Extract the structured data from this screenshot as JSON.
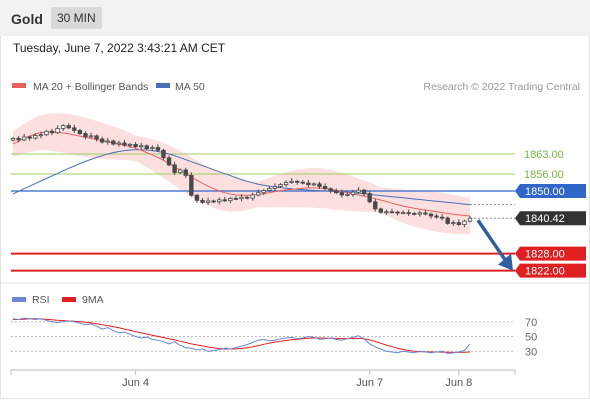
{
  "header": {
    "symbol": "Gold",
    "interval": "30 MIN",
    "timestamp": "Tuesday, June 7, 2022 3:43:21 AM CET"
  },
  "legend": {
    "ma20_label": "MA 20 + Bollinger Bands",
    "ma50_label": "MA 50",
    "credit": "Research © 2022 Trading Central",
    "rsi_label": "RSI",
    "ma9_label": "9MA"
  },
  "colors": {
    "candle": "#4a4a4a",
    "ma20": "#e8605f",
    "band": "#fbd6d6",
    "ma50": "#4a6fb5",
    "resistance": "#9ccc65",
    "pivot": "#2f66c8",
    "support": "#e02020",
    "arrow": "#2f5fa0",
    "rsi": "#6b86d6",
    "rsi_ma": "#e02020",
    "price_tag": "#333333"
  },
  "chart_data": [
    {
      "type": "candlestick",
      "x_ticks": [
        "Jun 4",
        "Jun 7",
        "Jun 8"
      ],
      "levels": [
        {
          "value": 1863.0,
          "label": "1863.00",
          "kind": "resistance"
        },
        {
          "value": 1856.0,
          "label": "1856.00",
          "kind": "resistance"
        },
        {
          "value": 1850.0,
          "label": "1850.00",
          "kind": "pivot"
        },
        {
          "value": 1828.0,
          "label": "1828.00",
          "kind": "support"
        },
        {
          "value": 1822.0,
          "label": "1822.00",
          "kind": "support"
        }
      ],
      "last_price": 1840.42,
      "last_price_label": "1840.42",
      "ylim": [
        1818,
        1882
      ],
      "close": [
        1868.5,
        1868,
        1869,
        1868.6,
        1869.5,
        1869.8,
        1871,
        1870.5,
        1872,
        1873,
        1872.2,
        1871.3,
        1870.2,
        1869.1,
        1869.4,
        1868.3,
        1867.2,
        1867.6,
        1866.5,
        1866.9,
        1866.1,
        1866.4,
        1865.6,
        1865.9,
        1864.9,
        1865.3,
        1864.3,
        1861.7,
        1859.2,
        1856.5,
        1857.4,
        1855.5,
        1848.5,
        1846.7,
        1846,
        1846.5,
        1846.2,
        1846.9,
        1846.6,
        1847.4,
        1847.3,
        1847.8,
        1847.5,
        1848.6,
        1849.4,
        1850.2,
        1850.9,
        1851.6,
        1852.3,
        1853,
        1853.4,
        1853.1,
        1852.8,
        1852.2,
        1852.5,
        1851.6,
        1850.8,
        1850.1,
        1849.4,
        1848.6,
        1848.8,
        1849.6,
        1850.3,
        1849.1,
        1846.2,
        1843.7,
        1842.5,
        1842.7,
        1842.6,
        1842.3,
        1842.4,
        1842.1,
        1841.9,
        1842.3,
        1841.9,
        1841.2,
        1840.8,
        1840.5,
        1838.6,
        1838.9,
        1838.2,
        1839.4,
        1840.42
      ],
      "ma20": [
        1866.5,
        1867.5,
        1868.5,
        1869.3,
        1870,
        1870.5,
        1870.7,
        1870.7,
        1870.6,
        1870.4,
        1870.1,
        1869.7,
        1869.3,
        1868.9,
        1868.5,
        1868.1,
        1867.7,
        1867.3,
        1866.9,
        1866.5,
        1866.1,
        1865.6,
        1865,
        1864.3,
        1863.5,
        1862.7,
        1861.8,
        1860.8,
        1859.7,
        1858.5,
        1857.3,
        1856.1,
        1854.9,
        1853.8,
        1852.7,
        1851.7,
        1850.8,
        1850,
        1849.4,
        1848.9,
        1848.6,
        1848.5,
        1848.5,
        1848.6,
        1848.8,
        1849.1,
        1849.4,
        1849.8,
        1850.1,
        1850.4,
        1850.6,
        1850.8,
        1851,
        1851.1,
        1851.1,
        1851,
        1850.9,
        1850.6,
        1850.2,
        1849.8,
        1849.4,
        1849,
        1848.6,
        1848.2,
        1847.8,
        1847.3,
        1846.8,
        1846.3,
        1845.7,
        1845.2,
        1844.7,
        1844.3,
        1843.9,
        1843.6,
        1843.3,
        1843,
        1842.7,
        1842.4,
        1842.1,
        1841.8,
        1841.6,
        1841.4,
        1841.2
      ],
      "ma50": [
        1849,
        1849.9,
        1850.8,
        1851.7,
        1852.6,
        1853.5,
        1854.4,
        1855.3,
        1856.2,
        1857.1,
        1858,
        1858.8,
        1859.6,
        1860.4,
        1861.1,
        1861.8,
        1862.4,
        1863,
        1863.5,
        1863.9,
        1864.2,
        1864.4,
        1864.5,
        1864.5,
        1864.4,
        1864.2,
        1863.9,
        1863.5,
        1863,
        1862.4,
        1861.7,
        1861,
        1860.3,
        1859.6,
        1858.9,
        1858.2,
        1857.5,
        1856.8,
        1856.1,
        1855.4,
        1854.7,
        1854,
        1853.4,
        1852.9,
        1852.4,
        1852,
        1851.7,
        1851.4,
        1851.2,
        1851,
        1850.8,
        1850.6,
        1850.5,
        1850.3,
        1850.2,
        1850.1,
        1850,
        1849.9,
        1849.8,
        1849.7,
        1849.6,
        1849.4,
        1849.2,
        1849,
        1848.8,
        1848.6,
        1848.4,
        1848.2,
        1848,
        1847.8,
        1847.6,
        1847.4,
        1847.2,
        1847,
        1846.8,
        1846.6,
        1846.4,
        1846.2,
        1846,
        1845.8,
        1845.6,
        1845.4,
        1845.2
      ]
    },
    {
      "type": "line",
      "series": [
        {
          "name": "RSI",
          "values": [
            74,
            73,
            75,
            74,
            73,
            74,
            72,
            70,
            69,
            70,
            71,
            70,
            68,
            66,
            67,
            64,
            60,
            62,
            58,
            55,
            56,
            53,
            50,
            48,
            49,
            46,
            45,
            43,
            40,
            43,
            38,
            35,
            34,
            32,
            33,
            30,
            31,
            32,
            34,
            33,
            35,
            37,
            39,
            42,
            45,
            46,
            44,
            45,
            47,
            48,
            49,
            47,
            48,
            50,
            49,
            46,
            47,
            48,
            46,
            45,
            47,
            49,
            51,
            47,
            40,
            36,
            33,
            30,
            29,
            28,
            30,
            29,
            28,
            30,
            29,
            28,
            29,
            30,
            27,
            28,
            29,
            31,
            40
          ]
        },
        {
          "name": "9MA",
          "values": [
            73,
            73,
            73.5,
            74,
            74,
            73.8,
            73.2,
            72.6,
            72,
            71.5,
            71,
            70.6,
            70,
            69.2,
            68.4,
            67.2,
            66,
            64.8,
            63.4,
            61.8,
            60,
            58.4,
            56.6,
            55,
            53.4,
            51.8,
            50.2,
            48.6,
            47,
            45.4,
            43.6,
            41.8,
            40,
            38.6,
            37.2,
            35.8,
            34.6,
            33.6,
            33,
            33,
            33.2,
            33.8,
            34.8,
            36,
            37.6,
            39.4,
            41,
            42.4,
            43.6,
            44.6,
            45.6,
            46.4,
            47,
            47.6,
            48,
            48,
            47.8,
            47.6,
            47.4,
            47.2,
            47.2,
            47.4,
            47.6,
            47,
            45.4,
            43.2,
            40.8,
            38.4,
            36.2,
            34,
            32.4,
            31,
            30,
            29.4,
            29.2,
            29,
            29,
            28.8,
            28.6,
            28.4,
            28.4,
            28.6,
            29
          ]
        }
      ],
      "y_ticks": [
        "70",
        "50",
        "30"
      ],
      "ylim": [
        10,
        90
      ]
    }
  ]
}
